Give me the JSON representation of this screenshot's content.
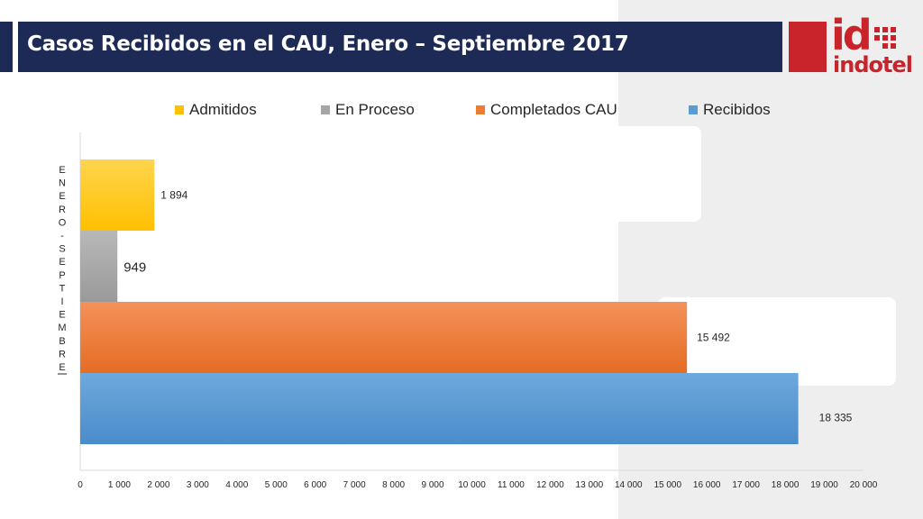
{
  "header": {
    "title": "Casos Recibidos en el CAU, Enero – Septiembre 2017"
  },
  "logo": {
    "mark": "id",
    "name": "indotel"
  },
  "colors": {
    "title_bar": "#1c2a55",
    "brand_red": "#c9242b",
    "admitidos": "#ffc000",
    "en_proceso": "#a5a5a5",
    "completados": "#ed7d31",
    "recibidos": "#5b9bd5"
  },
  "chart_data": {
    "type": "bar",
    "orientation": "horizontal",
    "categories": [
      "ENERO - SEPTIEMBRE"
    ],
    "series": [
      {
        "name": "Admitidos",
        "values": [
          1894
        ],
        "label": "1 894",
        "color": "#ffc000"
      },
      {
        "name": "En Proceso",
        "values": [
          949
        ],
        "label": "949",
        "color": "#a5a5a5"
      },
      {
        "name": "Completados CAU",
        "values": [
          15492
        ],
        "label": "15 492",
        "color": "#ed7d31"
      },
      {
        "name": "Recibidos",
        "values": [
          18335
        ],
        "label": "18 335",
        "color": "#5b9bd5"
      }
    ],
    "xlim": [
      0,
      20000
    ],
    "x_ticks": [
      "0",
      "1 000",
      "2 000",
      "3 000",
      "4 000",
      "5 000",
      "6 000",
      "7 000",
      "8 000",
      "9 000",
      "10 000",
      "11 000",
      "12 000",
      "13 000",
      "14 000",
      "15 000",
      "16 000",
      "17 000",
      "18 000",
      "19 000",
      "20 000"
    ],
    "legend_position": "top",
    "grid": false
  }
}
